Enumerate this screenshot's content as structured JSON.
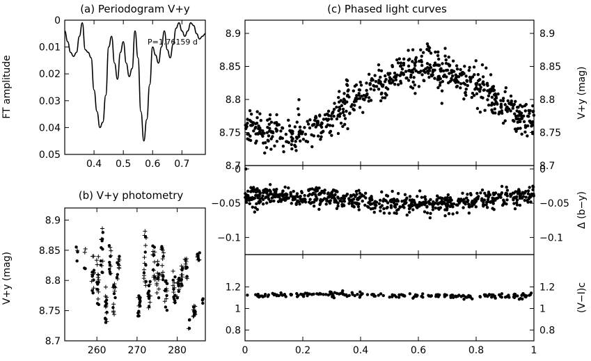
{
  "chart_data": [
    {
      "id": "a",
      "type": "line",
      "title": "(a) Periodogram V+y",
      "ylabel": "FT amplitude",
      "xlim": [
        0.3,
        0.78
      ],
      "ylim": [
        0,
        0.05
      ],
      "xticks": [
        0.4,
        0.5,
        0.6,
        0.7
      ],
      "xtick_labels": [
        "0.4",
        "0.5",
        "0.6",
        "0.7"
      ],
      "yticks": [
        0,
        0.01,
        0.02,
        0.03,
        0.04,
        0.05
      ],
      "ytick_labels": [
        "0",
        "0.01",
        "0.02",
        "0.03",
        "0.04",
        "0.05"
      ],
      "annotation": "P=1.76159 d",
      "series": [
        {
          "x": [
            0.3,
            0.31,
            0.32,
            0.33,
            0.34,
            0.35,
            0.36,
            0.37,
            0.38,
            0.39,
            0.4,
            0.41,
            0.42,
            0.43,
            0.44,
            0.45,
            0.46,
            0.47,
            0.48,
            0.49,
            0.5,
            0.51,
            0.52,
            0.53,
            0.54,
            0.55,
            0.56,
            0.57,
            0.58,
            0.59,
            0.6,
            0.61,
            0.62,
            0.63,
            0.64,
            0.65,
            0.66,
            0.67,
            0.68,
            0.69,
            0.7,
            0.71,
            0.72,
            0.73,
            0.74,
            0.75,
            0.76,
            0.77,
            0.78
          ],
          "y": [
            0.004,
            0.008,
            0.012,
            0.0135,
            0.012,
            0.006,
            0.001,
            0.011,
            0.012,
            0.014,
            0.026,
            0.034,
            0.04,
            0.038,
            0.028,
            0.01,
            0.006,
            0.016,
            0.022,
            0.012,
            0.008,
            0.016,
            0.021,
            0.018,
            0.004,
            0.014,
            0.034,
            0.045,
            0.037,
            0.024,
            0.01,
            0.013,
            0.016,
            0.01,
            0.004,
            0.011,
            0.014,
            0.009,
            0.003,
            0.001,
            0.004,
            0.006,
            0.004,
            0.001,
            0.002,
            0.005,
            0.007,
            0.006,
            0.005
          ]
        }
      ]
    },
    {
      "id": "b",
      "type": "scatter",
      "title": "(b) V+y photometry",
      "ylabel": "V+y (mag)",
      "xlim": [
        252,
        287
      ],
      "ylim": [
        8.92,
        8.7
      ],
      "xticks": [
        260,
        270,
        280
      ],
      "xtick_labels": [
        "260",
        "270",
        "280"
      ],
      "yticks": [
        8.7,
        8.75,
        8.8,
        8.85,
        8.9
      ],
      "ytick_labels": [
        "8.7",
        "8.75",
        "8.8",
        "8.85",
        "8.9"
      ],
      "clusters": [
        {
          "x": 255.0,
          "dx": 0.2,
          "ymin": 8.82,
          "ymax": 8.86,
          "n": 4
        },
        {
          "x": 257.0,
          "dx": 0.2,
          "ymin": 8.81,
          "ymax": 8.86,
          "n": 4
        },
        {
          "x": 259.0,
          "dx": 0.3,
          "ymin": 8.77,
          "ymax": 8.87,
          "n": 14
        },
        {
          "x": 260.2,
          "dx": 0.3,
          "ymin": 8.74,
          "ymax": 8.84,
          "n": 16
        },
        {
          "x": 261.3,
          "dx": 0.3,
          "ymin": 8.8,
          "ymax": 8.9,
          "n": 14
        },
        {
          "x": 262.3,
          "dx": 0.3,
          "ymin": 8.73,
          "ymax": 8.79,
          "n": 16
        },
        {
          "x": 263.2,
          "dx": 0.3,
          "ymin": 8.81,
          "ymax": 8.86,
          "n": 12
        },
        {
          "x": 264.3,
          "dx": 0.3,
          "ymin": 8.74,
          "ymax": 8.8,
          "n": 14
        },
        {
          "x": 265.3,
          "dx": 0.3,
          "ymin": 8.8,
          "ymax": 8.85,
          "n": 12
        },
        {
          "x": 270.5,
          "dx": 0.3,
          "ymin": 8.74,
          "ymax": 8.78,
          "n": 14
        },
        {
          "x": 272.0,
          "dx": 0.3,
          "ymin": 8.79,
          "ymax": 8.89,
          "n": 16
        },
        {
          "x": 273.0,
          "dx": 0.3,
          "ymin": 8.75,
          "ymax": 8.8,
          "n": 14
        },
        {
          "x": 274.2,
          "dx": 0.3,
          "ymin": 8.79,
          "ymax": 8.86,
          "n": 14
        },
        {
          "x": 275.2,
          "dx": 0.3,
          "ymin": 8.77,
          "ymax": 8.84,
          "n": 14
        },
        {
          "x": 276.3,
          "dx": 0.3,
          "ymin": 8.8,
          "ymax": 8.86,
          "n": 14
        },
        {
          "x": 277.2,
          "dx": 0.3,
          "ymin": 8.75,
          "ymax": 8.8,
          "n": 14
        },
        {
          "x": 279.2,
          "dx": 0.3,
          "ymin": 8.76,
          "ymax": 8.82,
          "n": 14
        },
        {
          "x": 280.2,
          "dx": 0.3,
          "ymin": 8.77,
          "ymax": 8.81,
          "n": 12
        },
        {
          "x": 281.2,
          "dx": 0.3,
          "ymin": 8.79,
          "ymax": 8.83,
          "n": 12
        },
        {
          "x": 282.2,
          "dx": 0.3,
          "ymin": 8.8,
          "ymax": 8.84,
          "n": 12
        },
        {
          "x": 283.0,
          "dx": 0.2,
          "ymin": 8.72,
          "ymax": 8.74,
          "n": 4
        },
        {
          "x": 284.3,
          "dx": 0.3,
          "ymin": 8.74,
          "ymax": 8.76,
          "n": 12
        },
        {
          "x": 285.3,
          "dx": 0.3,
          "ymin": 8.83,
          "ymax": 8.85,
          "n": 10
        },
        {
          "x": 286.3,
          "dx": 0.2,
          "ymin": 8.76,
          "ymax": 8.77,
          "n": 3
        }
      ]
    },
    {
      "id": "c1",
      "type": "scatter",
      "title": "(c) Phased light curves",
      "ylabel": "V+y (mag)",
      "xlim": [
        0,
        1
      ],
      "ylim": [
        8.92,
        8.7
      ],
      "yticks": [
        8.7,
        8.75,
        8.8,
        8.85,
        8.9
      ],
      "ytick_labels": [
        "8.7",
        "8.75",
        "8.8",
        "8.85",
        "8.9"
      ],
      "model": {
        "mean": 8.795,
        "amplitude": 0.05,
        "peak_phase": 0.13,
        "scatter": 0.012,
        "n": 700
      }
    },
    {
      "id": "c2",
      "type": "scatter",
      "ylabel": "Δ (b−y)",
      "xlim": [
        0,
        1
      ],
      "ylim": [
        0.005,
        -0.125
      ],
      "yticks": [
        0,
        -0.05,
        -0.1
      ],
      "ytick_labels": [
        "0",
        "−0.05",
        "−0.1"
      ],
      "model": {
        "mean": -0.045,
        "amplitude": 0.006,
        "scatter": 0.007,
        "n": 650
      },
      "extra_points": [
        {
          "x": 0.003,
          "y": 0.0
        }
      ]
    },
    {
      "id": "c3",
      "type": "scatter",
      "ylabel": "(V−I)c",
      "xlabel": "",
      "xlim": [
        0,
        1
      ],
      "ylim": [
        1.5,
        0.7
      ],
      "xticks": [
        0,
        0.2,
        0.4,
        0.6,
        0.8,
        1
      ],
      "xtick_labels": [
        "0",
        "0.2",
        "0.4",
        "0.6",
        "0.8",
        "1"
      ],
      "yticks": [
        0.8,
        1.0,
        1.2
      ],
      "ytick_labels": [
        "0.8",
        "1",
        "1.2"
      ],
      "model": {
        "mean": 1.12,
        "amplitude": 0.01,
        "scatter": 0.012,
        "n": 200
      }
    }
  ]
}
